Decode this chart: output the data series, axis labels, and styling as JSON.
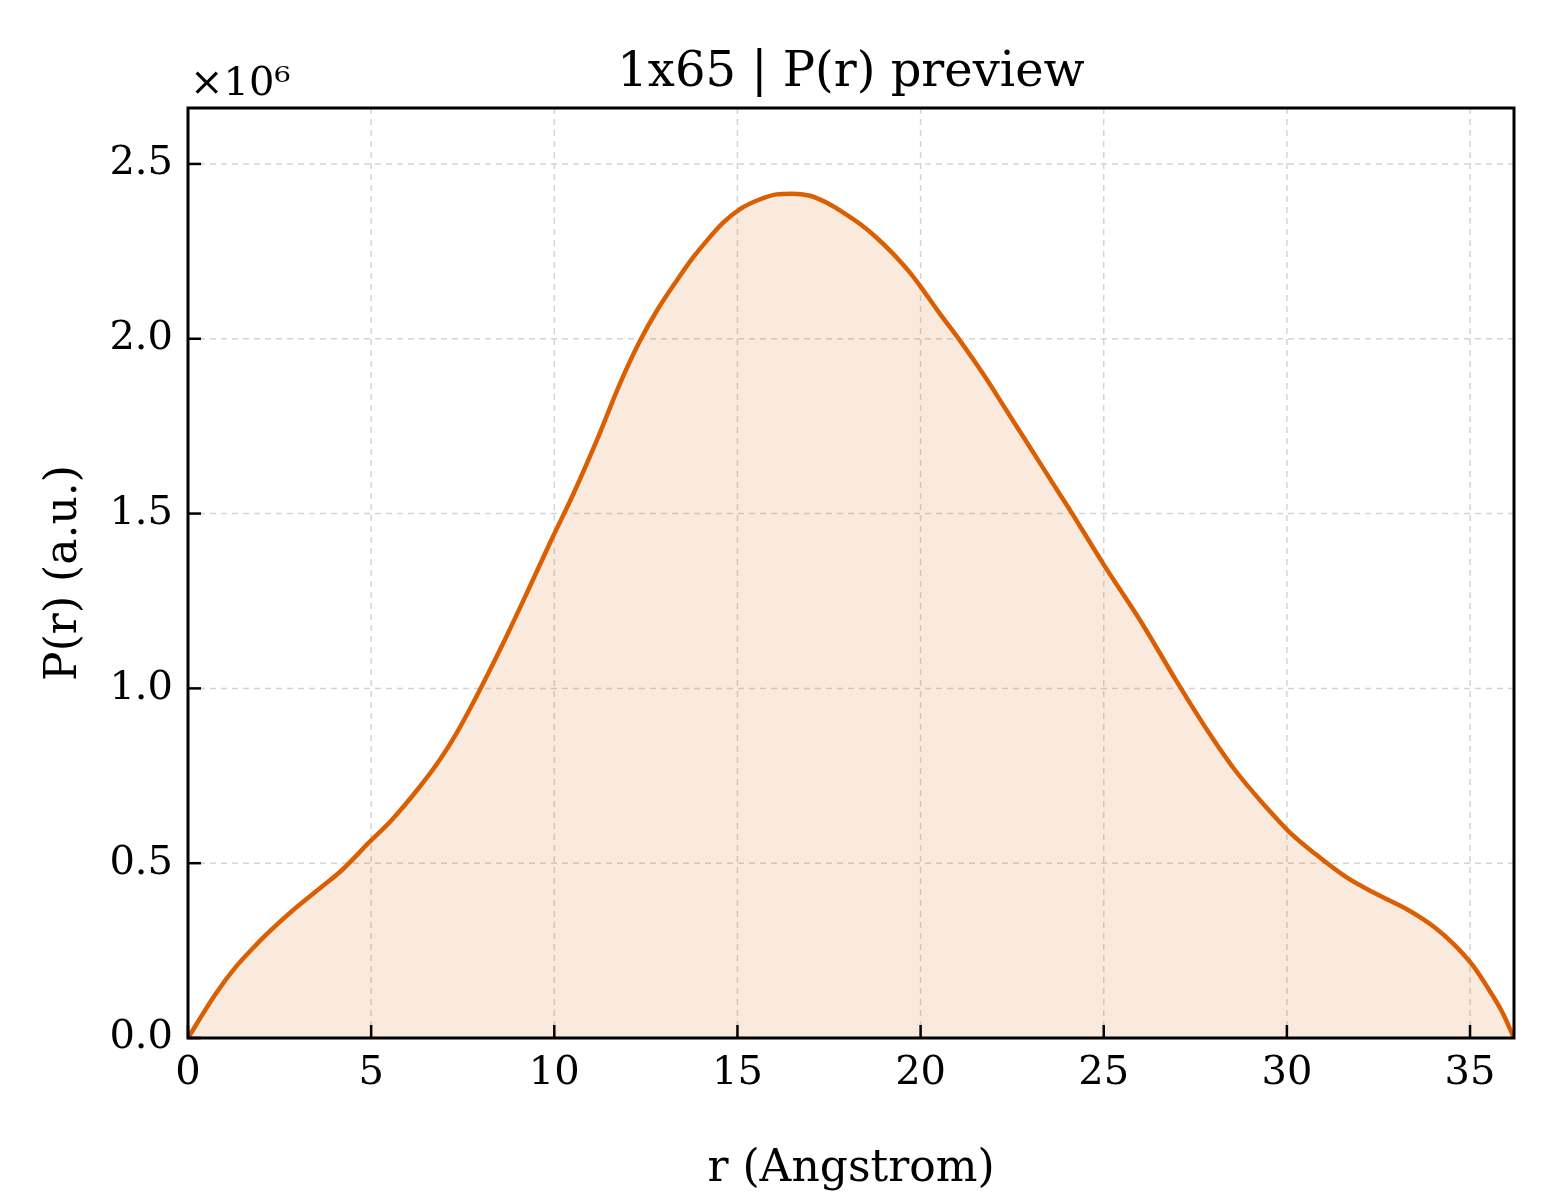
{
  "chart_data": {
    "type": "area",
    "title": "1x65 | P(r) preview",
    "xlabel": "r (Angstrom)",
    "ylabel": "P(r) (a.u.)",
    "annotations": [
      "×10⁶"
    ],
    "x": [
      0,
      0.74,
      1.31,
      1.79,
      2.27,
      2.85,
      3.61,
      4.19,
      4.95,
      5.53,
      6.3,
      6.87,
      7.35,
      7.92,
      8.59,
      9.27,
      9.9,
      10.52,
      11.16,
      11.79,
      12.34,
      12.8,
      13.34,
      13.8,
      14.16,
      14.61,
      15.07,
      15.62,
      16.07,
      16.48,
      16.98,
      17.44,
      17.89,
      18.35,
      18.8,
      19.26,
      19.71,
      19.98,
      20.53,
      21.08,
      21.71,
      22.35,
      22.99,
      23.62,
      24.06,
      25.0,
      26.05,
      26.99,
      27.84,
      28.57,
      29.31,
      30.04,
      30.78,
      31.62,
      32.46,
      33.3,
      34.03,
      34.56,
      35.08,
      35.5,
      35.87,
      36.2
    ],
    "values": [
      0,
      0.124,
      0.204,
      0.259,
      0.309,
      0.364,
      0.429,
      0.479,
      0.56,
      0.62,
      0.715,
      0.795,
      0.875,
      0.986,
      1.126,
      1.277,
      1.42,
      1.556,
      1.709,
      1.871,
      1.994,
      2.08,
      2.166,
      2.234,
      2.28,
      2.332,
      2.371,
      2.399,
      2.413,
      2.415,
      2.409,
      2.389,
      2.361,
      2.328,
      2.289,
      2.242,
      2.189,
      2.152,
      2.071,
      1.994,
      1.899,
      1.794,
      1.689,
      1.585,
      1.513,
      1.354,
      1.185,
      1.02,
      0.878,
      0.768,
      0.675,
      0.592,
      0.526,
      0.46,
      0.411,
      0.367,
      0.317,
      0.268,
      0.207,
      0.141,
      0.076,
      0
    ],
    "color": "#d95f02",
    "xlim": [
      0,
      36.2
    ],
    "ylim": [
      0,
      2.66
    ],
    "xticks": [
      0,
      5,
      10,
      15,
      20,
      25,
      30,
      35
    ],
    "yticks": [
      {
        "value": 0,
        "label": "0.0"
      },
      0.5,
      {
        "value": 1,
        "label": "1.0"
      },
      1.5,
      {
        "value": 2,
        "label": "2.0"
      },
      2.5
    ],
    "grid": true
  }
}
